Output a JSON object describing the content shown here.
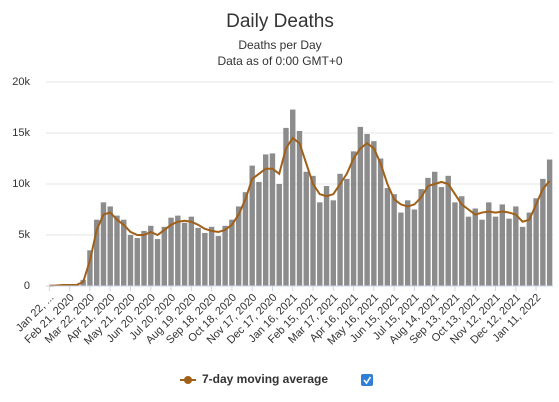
{
  "chart_data": {
    "type": "bar",
    "title": "Daily Deaths",
    "subtitle": "Deaths per Day",
    "note": "Data as of 0:00 GMT+0",
    "categories": [
      "Jan 22, ...",
      null,
      null,
      "Feb 21, 2020",
      null,
      null,
      "Mar 22, 2020",
      null,
      null,
      "Apr 21, 2020",
      null,
      null,
      "May 21, 2020",
      null,
      null,
      "Jun 20, 2020",
      null,
      null,
      "Jul 20, 2020",
      null,
      null,
      "Aug 19, 2020",
      null,
      null,
      "Sep 18, 2020",
      null,
      null,
      "Oct 18, 2020",
      null,
      null,
      "Nov 17, 2020",
      null,
      null,
      "Dec 17, 2020",
      null,
      null,
      "Jan 16, 2021",
      null,
      null,
      "Feb 15, 2021",
      null,
      null,
      "Mar 17, 2021",
      null,
      null,
      "Apr 16, 2021",
      null,
      null,
      "May 16, 2021",
      null,
      null,
      "Jun 15, 2021",
      null,
      null,
      "Jul 15, 2021",
      null,
      null,
      "Aug 14, 2021",
      null,
      null,
      "Sep 13, 2021",
      null,
      null,
      "Oct 13, 2021",
      null,
      null,
      "Nov 12, 2021",
      null,
      null,
      "Dec 12, 2021",
      null,
      null,
      "Jan 11, 2022",
      null,
      null
    ],
    "series": [
      {
        "color": "#8c8c8c",
        "values": [
          30,
          60,
          120,
          90,
          150,
          600,
          3500,
          6500,
          8200,
          7800,
          6900,
          6500,
          5000,
          4700,
          5400,
          5900,
          4600,
          5800,
          6700,
          6900,
          6200,
          6800,
          5700,
          5200,
          5800,
          4900,
          5900,
          6500,
          7800,
          9200,
          11800,
          10200,
          12900,
          13000,
          10000,
          15500,
          17300,
          15200,
          11200,
          10800,
          8200,
          9800,
          8400,
          11000,
          10500,
          13200,
          15600,
          14900,
          14200,
          12500,
          9600,
          9000,
          7200,
          8400,
          7500,
          9500,
          10600,
          11200,
          9700,
          10800,
          8200,
          8800,
          6800,
          7600,
          6500,
          8200,
          6800,
          8000,
          6600,
          7800,
          5800,
          7200,
          8600,
          10500,
          12400
        ]
      },
      {
        "name": "7-day moving average",
        "type": "line",
        "color": "#a0601a",
        "values": [
          20,
          50,
          100,
          100,
          100,
          400,
          2500,
          5500,
          7000,
          7200,
          6500,
          6000,
          5300,
          5000,
          5000,
          5300,
          5000,
          5500,
          6000,
          6300,
          6400,
          6300,
          6000,
          5600,
          5400,
          5300,
          5500,
          6000,
          7000,
          8500,
          10500,
          11000,
          11500,
          11500,
          11000,
          13500,
          14500,
          14000,
          12000,
          10000,
          9000,
          8800,
          9000,
          10000,
          11000,
          12500,
          13500,
          14000,
          13500,
          12000,
          10000,
          8500,
          8000,
          7800,
          8000,
          8700,
          9800,
          10000,
          10200,
          10000,
          9000,
          8000,
          7500,
          7000,
          7200,
          7300,
          7200,
          7300,
          7200,
          7000,
          6300,
          6500,
          8000,
          9500,
          10300
        ]
      }
    ],
    "ylim": [
      0,
      20000
    ],
    "yticks": [
      0,
      {
        "value": 5000,
        "label": "5k"
      },
      {
        "value": 10000,
        "label": "10k"
      },
      {
        "value": 15000,
        "label": "15k"
      },
      {
        "value": 20000,
        "label": "20k"
      }
    ],
    "grid": true
  }
}
